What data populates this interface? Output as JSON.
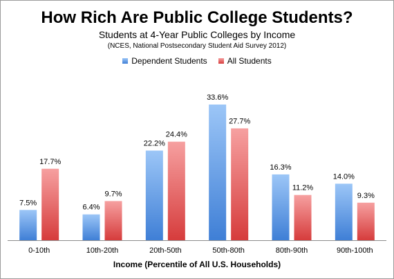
{
  "chart_data": {
    "type": "bar",
    "title": "How Rich Are Public College Students?",
    "subtitle": "Students at 4-Year Public Colleges by Income",
    "source": "(NCES, National Postsecondary Student Aid Survey 2012)",
    "xlabel": "Income (Percentile of All U.S. Households)",
    "ylabel": "",
    "ylim": [
      0,
      36
    ],
    "grid": false,
    "legend_position": "top",
    "categories": [
      "0-10th",
      "10th-20th",
      "20th-50th",
      "50th-80th",
      "80th-90th",
      "90th-100th"
    ],
    "series": [
      {
        "name": "Dependent Students",
        "values": [
          7.5,
          6.4,
          22.2,
          33.6,
          16.3,
          14.0
        ],
        "labels": [
          "7.5%",
          "6.4%",
          "22.2%",
          "33.6%",
          "16.3%",
          "14.0%"
        ],
        "color_top": "#9cc6f7",
        "color_bottom": "#3f7fd6"
      },
      {
        "name": "All Students",
        "values": [
          17.7,
          9.7,
          24.4,
          27.7,
          11.2,
          9.3
        ],
        "labels": [
          "17.7%",
          "9.7%",
          "24.4%",
          "27.7%",
          "11.2%",
          "9.3%"
        ],
        "color_top": "#f6a0a0",
        "color_bottom": "#d63c3c"
      }
    ]
  }
}
